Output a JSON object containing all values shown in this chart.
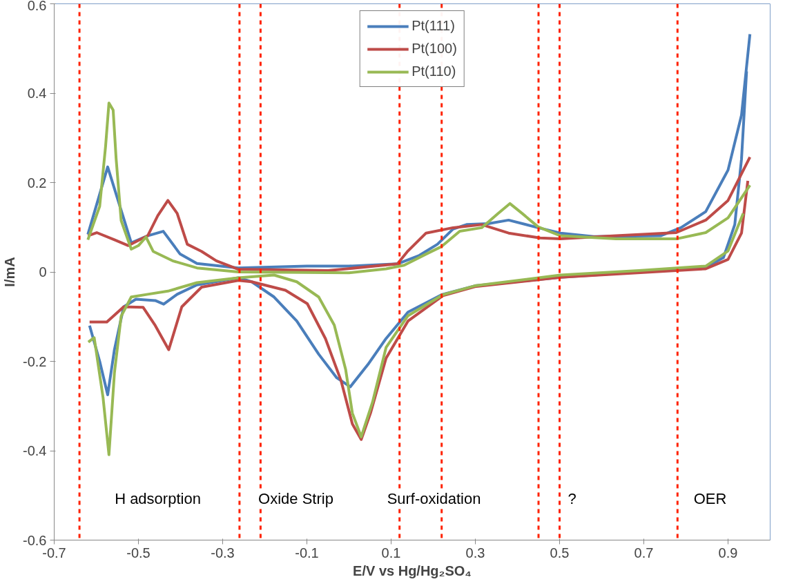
{
  "chart_data": {
    "type": "line",
    "xlabel": "E/V vs Hg/Hg₂SO₄",
    "ylabel": "I/mA",
    "xlim": [
      -0.7,
      1.0
    ],
    "xticks": [
      -0.7,
      -0.5,
      -0.3,
      -0.1,
      0.1,
      0.3,
      0.5,
      0.7,
      0.9
    ],
    "ylim": [
      -0.6,
      0.6
    ],
    "yticks": [
      -0.6,
      -0.4,
      -0.2,
      0,
      0.2,
      0.4,
      0.6
    ],
    "grid": false,
    "legend": "top",
    "marker": "none",
    "line_style": "solid",
    "series": [
      {
        "name": "Pt(111)",
        "color": "#4a7ebb",
        "x": [
          -0.62,
          -0.573,
          -0.517,
          -0.478,
          -0.441,
          -0.401,
          -0.361,
          -0.263,
          -0.1,
          0.0,
          0.115,
          0.167,
          0.21,
          0.247,
          0.279,
          0.331,
          0.379,
          0.449,
          0.502,
          0.581,
          0.74,
          0.788,
          0.847,
          0.9,
          0.932,
          0.952
        ],
        "values": [
          0.084,
          0.235,
          0.065,
          0.081,
          0.091,
          0.04,
          0.019,
          0.009,
          0.013,
          0.013,
          0.018,
          0.037,
          0.062,
          0.096,
          0.106,
          0.108,
          0.116,
          0.099,
          0.087,
          0.079,
          0.081,
          0.099,
          0.135,
          0.228,
          0.351,
          0.532
        ]
      },
      {
        "color": "#4a7ebb",
        "x": [
          0.944,
          0.932,
          0.916,
          0.889,
          0.847,
          0.502,
          0.299,
          0.22,
          0.14,
          0.088,
          0.045,
          0.003,
          -0.029,
          -0.072,
          -0.124,
          -0.178,
          -0.231,
          -0.263,
          -0.361,
          -0.408,
          -0.44,
          -0.46,
          -0.506,
          -0.535,
          -0.557,
          -0.573,
          -0.592,
          -0.616
        ],
        "values": [
          0.449,
          0.253,
          0.106,
          0.032,
          0.01,
          -0.012,
          -0.031,
          -0.051,
          -0.09,
          -0.149,
          -0.207,
          -0.257,
          -0.237,
          -0.184,
          -0.11,
          -0.056,
          -0.022,
          -0.013,
          -0.029,
          -0.05,
          -0.072,
          -0.064,
          -0.061,
          -0.078,
          -0.174,
          -0.275,
          -0.2,
          -0.12
        ]
      },
      {
        "name": "Pt(100)",
        "color": "#be4b48",
        "x": [
          -0.62,
          -0.599,
          -0.557,
          -0.524,
          -0.478,
          -0.454,
          -0.43,
          -0.408,
          -0.384,
          -0.35,
          -0.315,
          -0.263,
          -0.05,
          0.115,
          0.14,
          0.183,
          0.247,
          0.315,
          0.379,
          0.454,
          0.502,
          0.634,
          0.777,
          0.847,
          0.9,
          0.952
        ],
        "values": [
          0.081,
          0.088,
          0.072,
          0.059,
          0.081,
          0.126,
          0.16,
          0.131,
          0.062,
          0.046,
          0.025,
          0.006,
          0.003,
          0.018,
          0.047,
          0.087,
          0.099,
          0.106,
          0.087,
          0.076,
          0.074,
          0.081,
          0.088,
          0.116,
          0.16,
          0.257
        ]
      },
      {
        "color": "#be4b48",
        "x": [
          0.947,
          0.932,
          0.9,
          0.847,
          0.502,
          0.299,
          0.223,
          0.14,
          0.088,
          0.051,
          0.029,
          0.008,
          -0.019,
          -0.056,
          -0.099,
          -0.151,
          -0.231,
          -0.263,
          -0.35,
          -0.397,
          -0.428,
          -0.46,
          -0.489,
          -0.535,
          -0.575,
          -0.616
        ],
        "values": [
          0.204,
          0.087,
          0.028,
          0.007,
          -0.012,
          -0.033,
          -0.053,
          -0.11,
          -0.193,
          -0.316,
          -0.375,
          -0.34,
          -0.243,
          -0.149,
          -0.071,
          -0.041,
          -0.022,
          -0.019,
          -0.034,
          -0.078,
          -0.174,
          -0.12,
          -0.079,
          -0.078,
          -0.112,
          -0.112
        ]
      },
      {
        "name": "Pt(110)",
        "color": "#98b954",
        "x": [
          -0.62,
          -0.592,
          -0.578,
          -0.57,
          -0.56,
          -0.553,
          -0.541,
          -0.517,
          -0.5,
          -0.482,
          -0.465,
          -0.419,
          -0.361,
          -0.263,
          0.0,
          0.088,
          0.131,
          0.183,
          0.22,
          0.263,
          0.315,
          0.354,
          0.382,
          0.411,
          0.449,
          0.502,
          0.634,
          0.777,
          0.847,
          0.9,
          0.952
        ],
        "values": [
          0.072,
          0.147,
          0.281,
          0.378,
          0.362,
          0.254,
          0.115,
          0.051,
          0.059,
          0.078,
          0.046,
          0.025,
          0.009,
          0.0,
          -0.002,
          0.007,
          0.015,
          0.04,
          0.057,
          0.091,
          0.099,
          0.131,
          0.153,
          0.131,
          0.101,
          0.081,
          0.074,
          0.074,
          0.088,
          0.121,
          0.194
        ]
      },
      {
        "color": "#98b954",
        "x": [
          0.936,
          0.9,
          0.847,
          0.688,
          0.502,
          0.299,
          0.223,
          0.14,
          0.088,
          0.056,
          0.029,
          0.008,
          -0.008,
          -0.035,
          -0.072,
          -0.124,
          -0.178,
          -0.263,
          -0.361,
          -0.43,
          -0.478,
          -0.517,
          -0.541,
          -0.557,
          -0.57,
          -0.584,
          -0.605,
          -0.619
        ],
        "values": [
          0.131,
          0.047,
          0.013,
          0.003,
          -0.007,
          -0.031,
          -0.051,
          -0.098,
          -0.169,
          -0.291,
          -0.369,
          -0.316,
          -0.218,
          -0.119,
          -0.056,
          -0.022,
          -0.007,
          -0.013,
          -0.024,
          -0.043,
          -0.05,
          -0.056,
          -0.099,
          -0.226,
          -0.409,
          -0.281,
          -0.147,
          -0.157
        ]
      }
    ],
    "ref_lines": [
      {
        "axis": "x",
        "value": -0.64,
        "color": "#ff2200",
        "line_style": "dashed"
      },
      {
        "axis": "x",
        "value": -0.26,
        "color": "#ff2200",
        "line_style": "dashed"
      },
      {
        "axis": "x",
        "value": -0.21,
        "color": "#ff2200",
        "line_style": "dashed"
      },
      {
        "axis": "x",
        "value": 0.12,
        "color": "#ff2200",
        "line_style": "dashed"
      },
      {
        "axis": "x",
        "value": 0.22,
        "color": "#ff2200",
        "line_style": "dashed"
      },
      {
        "axis": "x",
        "value": 0.45,
        "color": "#ff2200",
        "line_style": "dashed"
      },
      {
        "axis": "x",
        "value": 0.5,
        "color": "#ff2200",
        "line_style": "dashed"
      },
      {
        "axis": "x",
        "value": 0.78,
        "color": "#ff2200",
        "line_style": "dashed"
      }
    ],
    "annotations": [
      "H adsorption",
      "Oxide Strip",
      "Surf-oxidation",
      "?",
      "OER"
    ]
  }
}
